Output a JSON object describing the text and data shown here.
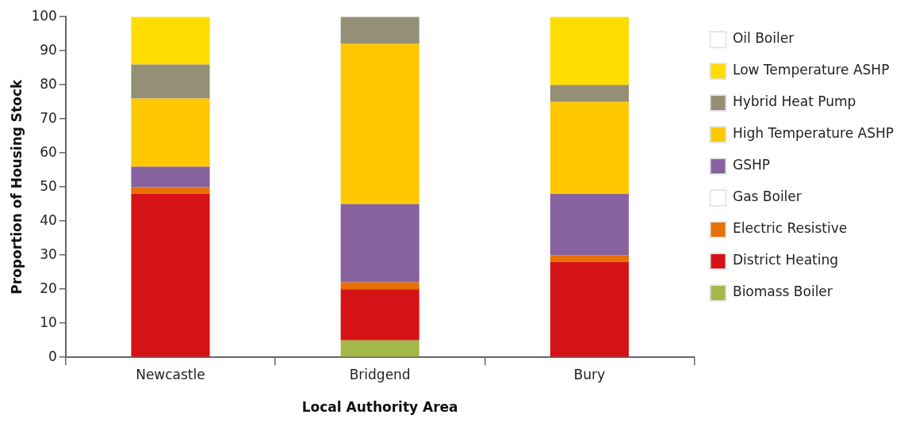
{
  "chart_data": {
    "type": "bar",
    "stacked": true,
    "xlabel": "Local Authority Area",
    "ylabel": "Proportion of Housing Stock",
    "categories": [
      "Newcastle",
      "Bridgend",
      "Bury"
    ],
    "ylim": [
      0,
      100
    ],
    "yticks": [
      0,
      10,
      20,
      30,
      40,
      50,
      60,
      70,
      80,
      90,
      100
    ],
    "grid": false,
    "legend": "right",
    "series": [
      {
        "name": "Biomass Boiler",
        "color": "#a4b84a",
        "values": [
          0,
          5,
          0
        ]
      },
      {
        "name": "District Heating",
        "color": "#d51317",
        "values": [
          48,
          15,
          28
        ]
      },
      {
        "name": "Electric Resistive",
        "color": "#e86f05",
        "values": [
          2,
          2,
          2
        ]
      },
      {
        "name": "Gas Boiler",
        "color": "#ffffff",
        "values": [
          0,
          0,
          0
        ]
      },
      {
        "name": "GSHP",
        "color": "#87629e",
        "values": [
          6,
          23,
          18
        ]
      },
      {
        "name": "High Temperature ASHP",
        "color": "#ffc800",
        "values": [
          20,
          47,
          27
        ]
      },
      {
        "name": "Hybrid Heat Pump",
        "color": "#968f78",
        "values": [
          10,
          8,
          5
        ]
      },
      {
        "name": "Low Temperature ASHP",
        "color": "#ffdd00",
        "values": [
          14,
          0,
          20
        ]
      },
      {
        "name": "Oil Boiler",
        "color": "#ffffff",
        "values": [
          0,
          0,
          0
        ]
      }
    ]
  }
}
